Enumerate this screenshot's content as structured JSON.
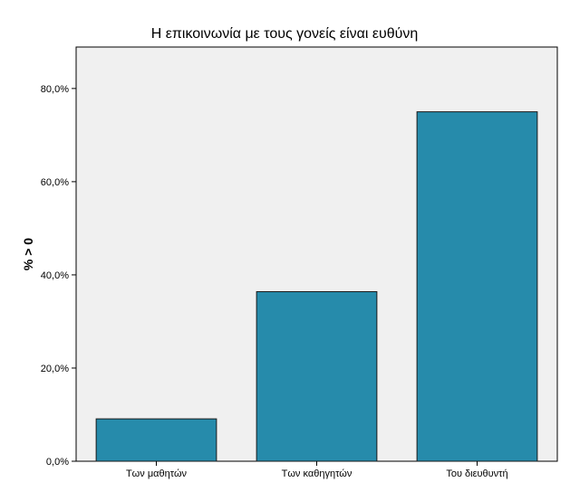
{
  "chart_data": {
    "type": "bar",
    "title": "Η επικοινωνία με τους γονείς είναι ευθύνη",
    "xlabel": "",
    "ylabel": "% > 0",
    "categories": [
      "Των μαθητών",
      "Των καθηγητών",
      "Του διευθυντή"
    ],
    "values": [
      9.1,
      36.4,
      75.0
    ],
    "ylim": [
      0,
      88.9
    ],
    "yticks": [
      0,
      20,
      40,
      60,
      80
    ],
    "ytick_labels": [
      "0,0%",
      "20,0%",
      "40,0%",
      "60,0%",
      "80,0%"
    ],
    "grid": false,
    "legend": "none",
    "colors": {
      "bar": "#268bab",
      "bar_stroke": "#1a1a1a",
      "plot_background": "#f0f0f0",
      "axis": "#000000"
    }
  }
}
